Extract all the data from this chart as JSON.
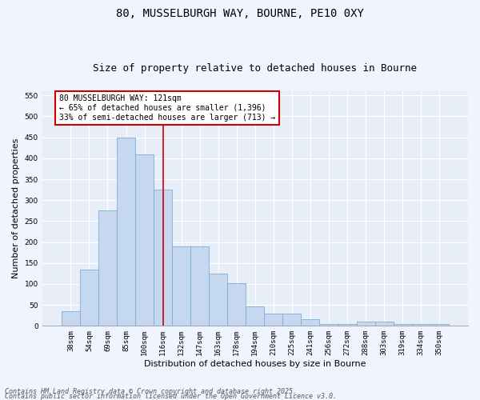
{
  "title_line1": "80, MUSSELBURGH WAY, BOURNE, PE10 0XY",
  "title_line2": "Size of property relative to detached houses in Bourne",
  "xlabel": "Distribution of detached houses by size in Bourne",
  "ylabel": "Number of detached properties",
  "categories": [
    "38sqm",
    "54sqm",
    "69sqm",
    "85sqm",
    "100sqm",
    "116sqm",
    "132sqm",
    "147sqm",
    "163sqm",
    "178sqm",
    "194sqm",
    "210sqm",
    "225sqm",
    "241sqm",
    "256sqm",
    "272sqm",
    "288sqm",
    "303sqm",
    "319sqm",
    "334sqm",
    "350sqm"
  ],
  "values": [
    35,
    135,
    275,
    450,
    410,
    325,
    190,
    190,
    125,
    102,
    46,
    30,
    30,
    15,
    5,
    5,
    10,
    10,
    5,
    5,
    5
  ],
  "bar_color": "#c5d8f0",
  "bar_edge_color": "#7bafd4",
  "vline_x_index": 5,
  "vline_color": "#cc0000",
  "annotation_text": "80 MUSSELBURGH WAY: 121sqm\n← 65% of detached houses are smaller (1,396)\n33% of semi-detached houses are larger (713) →",
  "annotation_box_color": "#ffffff",
  "annotation_box_edge_color": "#cc0000",
  "ylim": [
    0,
    560
  ],
  "yticks": [
    0,
    50,
    100,
    150,
    200,
    250,
    300,
    350,
    400,
    450,
    500,
    550
  ],
  "background_color": "#e8eef8",
  "grid_color": "#ffffff",
  "fig_background": "#f0f4ff",
  "footer_line1": "Contains HM Land Registry data © Crown copyright and database right 2025.",
  "footer_line2": "Contains public sector information licensed under the Open Government Licence v3.0.",
  "title_fontsize": 10,
  "subtitle_fontsize": 9,
  "tick_fontsize": 6.5,
  "label_fontsize": 8,
  "annotation_fontsize": 7,
  "footer_fontsize": 6
}
